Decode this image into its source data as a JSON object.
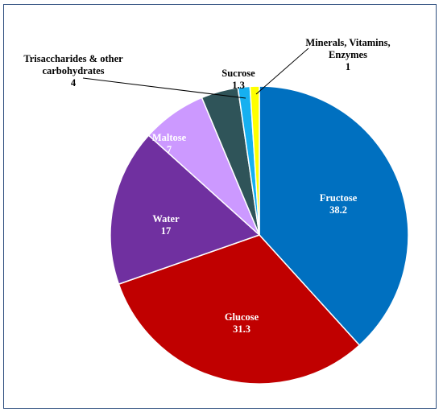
{
  "chart_data": {
    "type": "pie",
    "title": "",
    "start_angle_deg": 0,
    "direction": "clockwise",
    "slices": [
      {
        "name": "Fructose",
        "value": 38.2,
        "color": "#0070c0",
        "label_color": "#ffffff",
        "label_lines": [
          "Fructose",
          "38.2"
        ]
      },
      {
        "name": "Glucose",
        "value": 31.3,
        "color": "#c00000",
        "label_color": "#ffffff",
        "label_lines": [
          "Glucose",
          "31.3"
        ]
      },
      {
        "name": "Water",
        "value": 17,
        "color": "#7030a0",
        "label_color": "#ffffff",
        "label_lines": [
          "Water",
          "17"
        ]
      },
      {
        "name": "Maltose",
        "value": 7,
        "color": "#cc99ff",
        "label_color": "#ffffff",
        "label_lines": [
          "Maltose",
          "7"
        ]
      },
      {
        "name": "Trisaccharides & other carbohydrates",
        "value": 4,
        "color": "#2f5459",
        "label_color": "#000000",
        "label_lines": [
          "Trisaccharides  & other",
          "carbohydrates",
          "4"
        ]
      },
      {
        "name": "Sucrose",
        "value": 1.3,
        "color": "#16b0f0",
        "label_color": "#000000",
        "label_lines": [
          "Sucrose",
          "1.3"
        ]
      },
      {
        "name": "Minerals, Vitamins, Enzymes",
        "value": 1,
        "color": "#ffff00",
        "label_color": "#000000",
        "label_lines": [
          "Minerals, Vitamins,",
          "Enzymes",
          "1"
        ]
      }
    ]
  }
}
